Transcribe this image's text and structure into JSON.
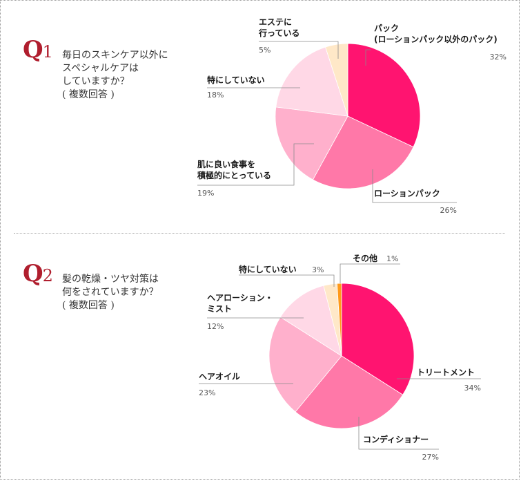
{
  "q1": {
    "mark": "Q",
    "num": "1",
    "question": "毎日のスキンケア以外に\nスペシャルケアは\nしていますか？\n( 複数回答 )"
  },
  "q2": {
    "mark": "Q",
    "num": "2",
    "question": "髪の乾燥・ツヤ対策は\n何をされていますか？\n( 複数回答 )"
  },
  "chart_data": [
    {
      "type": "pie",
      "title": "毎日のスキンケア以外にスペシャルケアはしていますか？( 複数回答 )",
      "start_angle_deg": 0,
      "direction": "clockwise",
      "slices": [
        {
          "name": "パック\n(ローションパック以外のパック)",
          "pct_label": "32%",
          "value": 32,
          "color": "#ff1470"
        },
        {
          "name": "ローションパック",
          "pct_label": "26%",
          "value": 26,
          "color": "#ff78a8"
        },
        {
          "name": "肌に良い食事を\n積極的にとっている",
          "pct_label": "19%",
          "value": 19,
          "color": "#ffb0cc"
        },
        {
          "name": "特にしていない",
          "pct_label": "18%",
          "value": 18,
          "color": "#ffd8e6"
        },
        {
          "name": "エステに\n行っている",
          "pct_label": "5%",
          "value": 5,
          "color": "#ffe8c8"
        }
      ]
    },
    {
      "type": "pie",
      "title": "髪の乾燥・ツヤ対策は何をされていますか？( 複数回答 )",
      "start_angle_deg": 0,
      "direction": "clockwise",
      "slices": [
        {
          "name": "トリートメント",
          "pct_label": "34%",
          "value": 34,
          "color": "#ff1470"
        },
        {
          "name": "コンディショナー",
          "pct_label": "27%",
          "value": 27,
          "color": "#ff78a8"
        },
        {
          "name": "ヘアオイル",
          "pct_label": "23%",
          "value": 23,
          "color": "#ffb0cc"
        },
        {
          "name": "ヘアローション・\nミスト",
          "pct_label": "12%",
          "value": 12,
          "color": "#ffd8e6"
        },
        {
          "name": "特にしていない",
          "pct_label": "3%",
          "value": 3,
          "color": "#ffe8c8"
        },
        {
          "name": "その他",
          "pct_label": "1%",
          "value": 1,
          "color": "#ff9a1a"
        }
      ]
    }
  ]
}
